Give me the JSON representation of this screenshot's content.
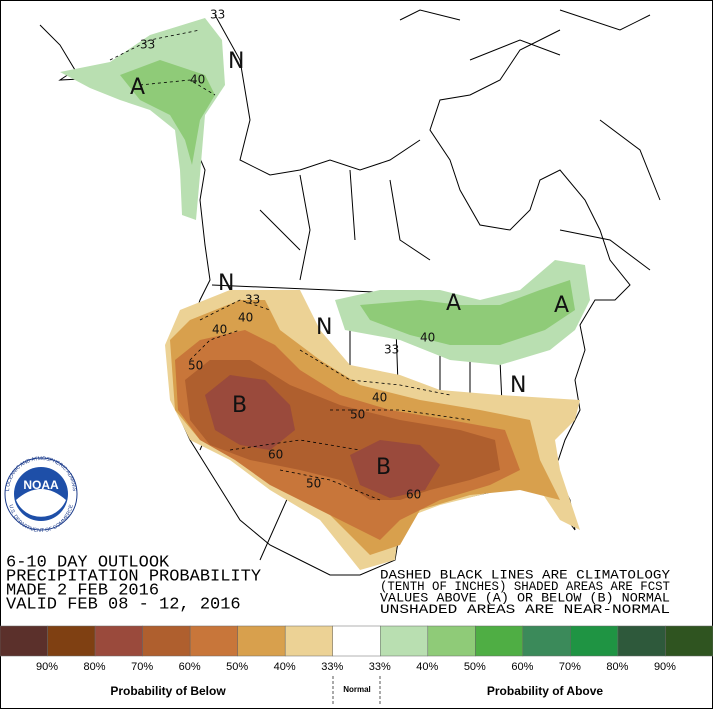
{
  "outlook": {
    "lines": [
      "6-10 DAY OUTLOOK",
      "PRECIPITATION PROBABILITY",
      "MADE  2 FEB 2016",
      "VALID  FEB 08 - 12, 2016"
    ]
  },
  "note": {
    "lines": [
      "DASHED BLACK LINES ARE CLIMATOLOGY",
      "(TENTH OF INCHES) SHADED AREAS ARE FCST",
      "VALUES ABOVE (A) OR BELOW (B) NORMAL",
      "UNSHADED AREAS ARE NEAR-NORMAL"
    ]
  },
  "logo": {
    "text": "NOAA",
    "ring_top": "NATIONAL OCEANIC AND ATMOSPHERIC ADMINISTRATION",
    "ring_bottom": "U.S. DEPARTMENT OF COMMERCE"
  },
  "map": {
    "labels": [
      "33",
      "33",
      "40",
      "A",
      "N",
      "N",
      "40",
      "33",
      "40",
      "N",
      "50",
      "B",
      "60",
      "50",
      "33",
      "40",
      "50",
      "B",
      "60",
      "40",
      "A",
      "A",
      "N"
    ]
  },
  "legend": {
    "colors": [
      "#5b302b",
      "#7f4012",
      "#9a4a3c",
      "#af5f2e",
      "#c8763a",
      "#d8a04d",
      "#ecd295",
      "#ffffff",
      "#b9dfb1",
      "#8fcb78",
      "#4fae44",
      "#3b8a5a",
      "#1f9443",
      "#2e593b",
      "#2f5420"
    ],
    "below_labels": [
      "90%",
      "80%",
      "70%",
      "60%",
      "50%",
      "40%",
      "33%"
    ],
    "above_labels": [
      "33%",
      "40%",
      "50%",
      "60%",
      "70%",
      "80%",
      "90%"
    ],
    "below_title": "Probability of Below",
    "normal_title": "Normal",
    "above_title": "Probability of Above"
  }
}
